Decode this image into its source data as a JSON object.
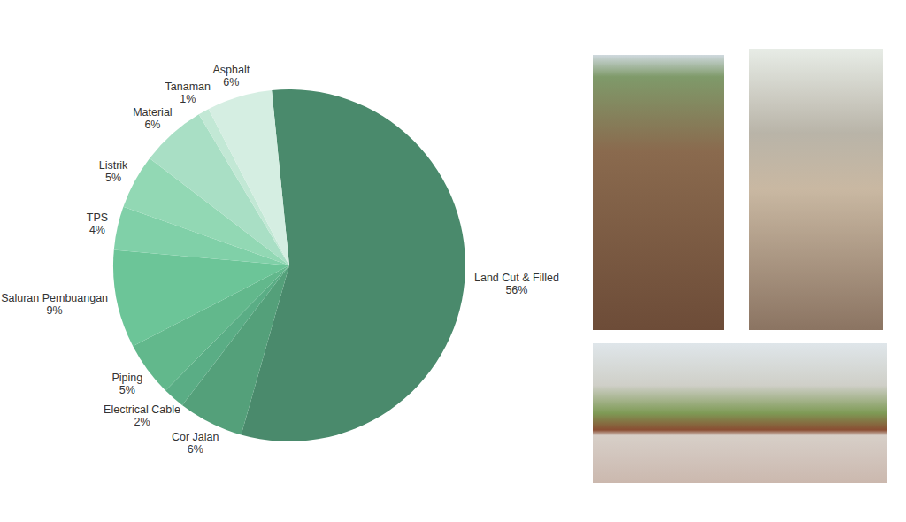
{
  "chart_data": {
    "type": "pie",
    "categories": [
      "Land Cut & Filled",
      "Cor Jalan",
      "Electrical Cable",
      "Piping",
      "Saluran Pembuangan",
      "TPS",
      "Listrik",
      "Material",
      "Tanaman",
      "Asphalt"
    ],
    "values": [
      56,
      6,
      2,
      5,
      9,
      4,
      5,
      6,
      1,
      6
    ],
    "value_labels": [
      "56%",
      "6%",
      "2%",
      "5%",
      "9%",
      "4%",
      "5%",
      "6%",
      "1%",
      "6%"
    ],
    "colors": [
      "#4a8a6c",
      "#54a07a",
      "#5aad85",
      "#62b88c",
      "#6cc598",
      "#80d0a8",
      "#92d8b4",
      "#a9dfc5",
      "#c2e8d5",
      "#d5eee2"
    ],
    "data_labels": true
  }
}
